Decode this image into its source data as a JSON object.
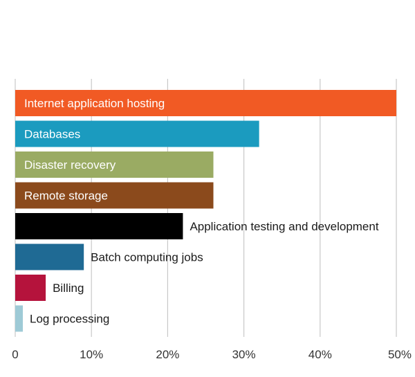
{
  "chart_data": {
    "type": "bar",
    "orientation": "horizontal",
    "categories": [
      "Internet application hosting",
      "Databases",
      "Disaster recovery",
      "Remote storage",
      "Application testing and development",
      "Batch computing jobs",
      "Billing",
      "Log processing"
    ],
    "values": [
      50,
      32,
      26,
      26,
      22,
      9,
      4,
      1
    ],
    "colors": [
      "#f15a24",
      "#1b9bbf",
      "#9aab63",
      "#8b4a1c",
      "#000000",
      "#1f6a94",
      "#b5133c",
      "#9ecad6"
    ],
    "label_inside": [
      true,
      true,
      true,
      true,
      false,
      false,
      false,
      false
    ],
    "xlim": [
      0,
      50
    ],
    "x_ticks": [
      0,
      10,
      20,
      30,
      40,
      50
    ],
    "x_tick_labels": [
      "0",
      "10%",
      "20%",
      "30%",
      "40%",
      "50%"
    ],
    "grid": true,
    "title": "",
    "xlabel": "",
    "ylabel": ""
  }
}
